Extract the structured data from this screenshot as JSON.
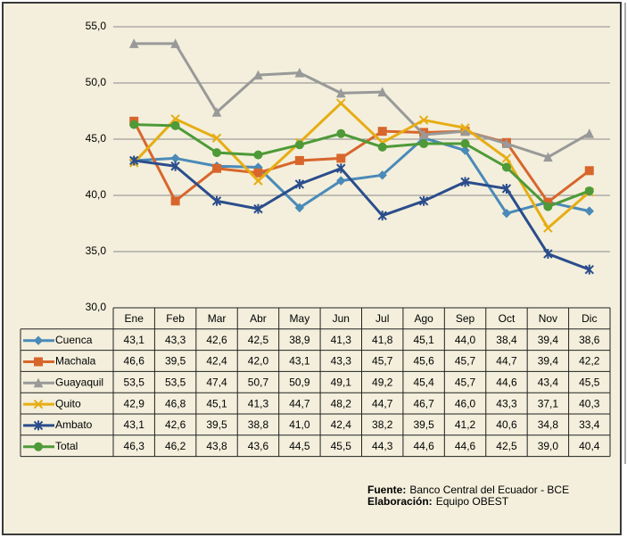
{
  "chart_data": {
    "type": "line",
    "categories": [
      "Ene",
      "Feb",
      "Mar",
      "Abr",
      "May",
      "Jun",
      "Jul",
      "Ago",
      "Sep",
      "Oct",
      "Nov",
      "Dic"
    ],
    "ylim": [
      30,
      55
    ],
    "yticks": [
      {
        "value": 30,
        "label": "30,0"
      },
      {
        "value": 35,
        "label": "35,0"
      },
      {
        "value": 40,
        "label": "40,0"
      },
      {
        "value": 45,
        "label": "45,0"
      },
      {
        "value": 50,
        "label": "50,0"
      },
      {
        "value": 55,
        "label": "55,0"
      }
    ],
    "grid": true,
    "series": [
      {
        "name": "Cuenca",
        "color": "#4a8ab8",
        "marker": "diamond",
        "values": [
          43.1,
          43.3,
          42.6,
          42.5,
          38.9,
          41.3,
          41.8,
          45.1,
          44.0,
          38.4,
          39.4,
          38.6
        ],
        "value_labels": [
          "43,1",
          "43,3",
          "42,6",
          "42,5",
          "38,9",
          "41,3",
          "41,8",
          "45,1",
          "44,0",
          "38,4",
          "39,4",
          "38,6"
        ]
      },
      {
        "name": "Machala",
        "color": "#d8662c",
        "marker": "square",
        "values": [
          46.6,
          39.5,
          42.4,
          42.0,
          43.1,
          43.3,
          45.7,
          45.6,
          45.7,
          44.7,
          39.4,
          42.2
        ],
        "value_labels": [
          "46,6",
          "39,5",
          "42,4",
          "42,0",
          "43,1",
          "43,3",
          "45,7",
          "45,6",
          "45,7",
          "44,7",
          "39,4",
          "42,2"
        ]
      },
      {
        "name": "Guayaquil",
        "color": "#999999",
        "marker": "triangle",
        "values": [
          53.5,
          53.5,
          47.4,
          50.7,
          50.9,
          49.1,
          49.2,
          45.4,
          45.7,
          44.6,
          43.4,
          45.5
        ],
        "value_labels": [
          "53,5",
          "53,5",
          "47,4",
          "50,7",
          "50,9",
          "49,1",
          "49,2",
          "45,4",
          "45,7",
          "44,6",
          "43,4",
          "45,5"
        ]
      },
      {
        "name": "Quito",
        "color": "#e6ad14",
        "marker": "x",
        "values": [
          42.9,
          46.8,
          45.1,
          41.3,
          44.7,
          48.2,
          44.7,
          46.7,
          46.0,
          43.3,
          37.1,
          40.3
        ],
        "value_labels": [
          "42,9",
          "46,8",
          "45,1",
          "41,3",
          "44,7",
          "48,2",
          "44,7",
          "46,7",
          "46,0",
          "43,3",
          "37,1",
          "40,3"
        ]
      },
      {
        "name": "Ambato",
        "color": "#2b4d8c",
        "marker": "star",
        "values": [
          43.1,
          42.6,
          39.5,
          38.8,
          41.0,
          42.4,
          38.2,
          39.5,
          41.2,
          40.6,
          34.8,
          33.4
        ],
        "value_labels": [
          "43,1",
          "42,6",
          "39,5",
          "38,8",
          "41,0",
          "42,4",
          "38,2",
          "39,5",
          "41,2",
          "40,6",
          "34,8",
          "33,4"
        ]
      },
      {
        "name": "Total",
        "color": "#4e9a38",
        "marker": "circle",
        "values": [
          46.3,
          46.2,
          43.8,
          43.6,
          44.5,
          45.5,
          44.3,
          44.6,
          44.6,
          42.5,
          39.0,
          40.4
        ],
        "value_labels": [
          "46,3",
          "46,2",
          "43,8",
          "43,6",
          "44,5",
          "45,5",
          "44,3",
          "44,6",
          "44,6",
          "42,5",
          "39,0",
          "40,4"
        ]
      }
    ],
    "notes": [
      {
        "label": "Fuente:",
        "text": "Banco Central del Ecuador - BCE"
      },
      {
        "label": "Elaboración:",
        "text": "Equipo OBEST"
      }
    ]
  }
}
